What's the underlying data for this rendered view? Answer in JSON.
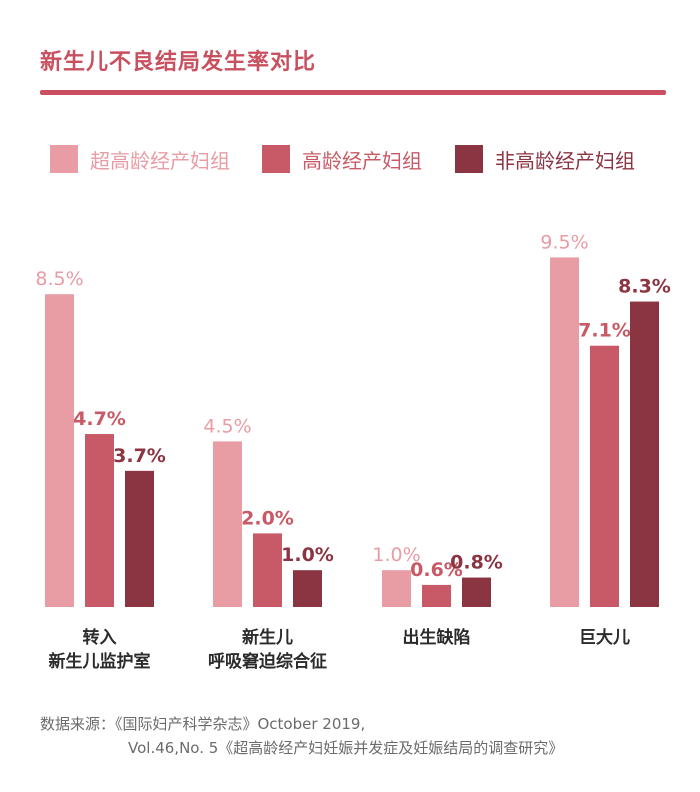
{
  "chart_data": {
    "type": "bar",
    "title": "新生儿不良结局发生率对比",
    "categories": [
      [
        "转入",
        "新生儿监护室"
      ],
      [
        "新生儿",
        "呼吸窘迫综合征"
      ],
      [
        "出生缺陷"
      ],
      [
        "巨大儿"
      ]
    ],
    "series": [
      {
        "name": "超高龄经产妇组",
        "color": "#e89ca4",
        "values": [
          8.5,
          4.5,
          1.0,
          9.5
        ],
        "labels": [
          "8.5%",
          "4.5%",
          "1.0%",
          "9.5%"
        ]
      },
      {
        "name": "高龄经产妇组",
        "color": "#c75a66",
        "values": [
          4.7,
          2.0,
          0.6,
          7.1
        ],
        "labels": [
          "4.7%",
          "2.0%",
          "0.6%",
          "7.1%"
        ]
      },
      {
        "name": "非高龄经产妇组",
        "color": "#8b3442",
        "values": [
          3.7,
          1.0,
          0.8,
          8.3
        ],
        "labels": [
          "3.7%",
          "1.0%",
          "0.8%",
          "8.3%"
        ]
      }
    ],
    "ylim": [
      0,
      10
    ],
    "grid": false,
    "legend_position": "top",
    "xlabel": "",
    "ylabel": ""
  },
  "source": {
    "line1": "数据来源：《国际妇产科学杂志》October 2019,",
    "line2": "Vol.46,No. 5《超高龄经产妇妊娠并发症及妊娠结局的调查研究》"
  }
}
